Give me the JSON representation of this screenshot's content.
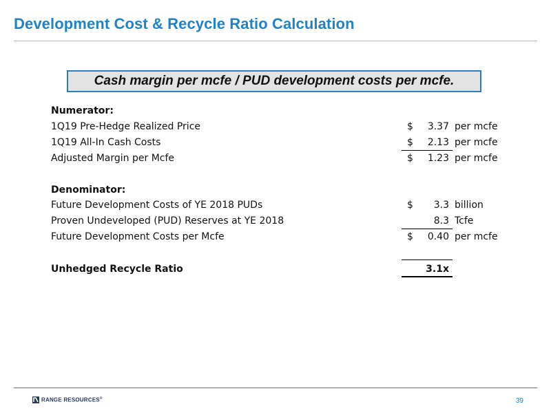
{
  "slide": {
    "title": "Development Cost & Recycle Ratio Calculation",
    "formula": "Cash margin per mcfe / PUD development costs per mcfe.",
    "page_number": "39",
    "logo_text": "RANGE RESOURCES",
    "logo_trademark": "®"
  },
  "numerator": {
    "heading": "Numerator:",
    "rows": [
      {
        "label": "1Q19 Pre-Hedge Realized Price",
        "currency": "$",
        "value": "3.37",
        "unit": "per mcfe"
      },
      {
        "label": "1Q19 All-In Cash Costs",
        "currency": "$",
        "value": "2.13",
        "unit": "per mcfe"
      },
      {
        "label": "Adjusted Margin per Mcfe",
        "currency": "$",
        "value": "1.23",
        "unit": "per mcfe"
      }
    ]
  },
  "denominator": {
    "heading": "Denominator:",
    "rows": [
      {
        "label": "Future Development Costs of YE 2018 PUDs",
        "currency": "$",
        "value": "3.3",
        "unit": "billion"
      },
      {
        "label": "Proven Undeveloped (PUD) Reserves at YE 2018",
        "currency": "",
        "value": "8.3",
        "unit": "Tcfe"
      },
      {
        "label": "Future Development Costs per Mcfe",
        "currency": "$",
        "value": "0.40",
        "unit": "per mcfe"
      }
    ]
  },
  "result": {
    "label": "Unhedged Recycle Ratio",
    "value": "3.1x"
  }
}
